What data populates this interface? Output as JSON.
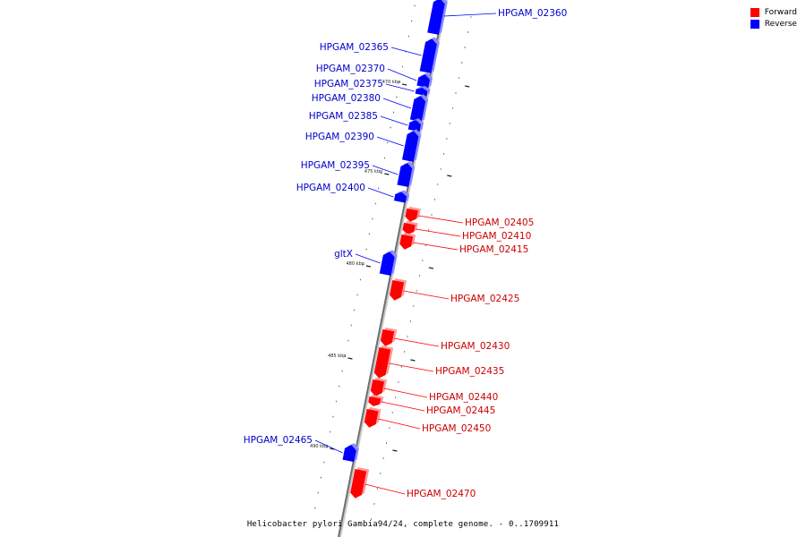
{
  "caption": "Helicobacter pylori Gambia94/24, complete genome. - 0..1709911",
  "legend": [
    {
      "label": "Forward",
      "color": "#ff0000"
    },
    {
      "label": "Reverse",
      "color": "#0000ff"
    }
  ],
  "colors": {
    "forward": "#ff0000",
    "reverse": "#0000ff",
    "backbone": "#888888"
  },
  "scale_ticks": [
    "470 kbp",
    "475 kbp",
    "480 kbp",
    "485 kbp",
    "490 kbp"
  ],
  "genes": [
    {
      "name": "HPGAM_02360",
      "strand": "reverse"
    },
    {
      "name": "HPGAM_02365",
      "strand": "reverse"
    },
    {
      "name": "HPGAM_02370",
      "strand": "reverse"
    },
    {
      "name": "HPGAM_02375",
      "strand": "reverse"
    },
    {
      "name": "HPGAM_02380",
      "strand": "reverse"
    },
    {
      "name": "HPGAM_02385",
      "strand": "reverse"
    },
    {
      "name": "HPGAM_02390",
      "strand": "reverse"
    },
    {
      "name": "HPGAM_02395",
      "strand": "reverse"
    },
    {
      "name": "HPGAM_02400",
      "strand": "reverse"
    },
    {
      "name": "HPGAM_02405",
      "strand": "forward"
    },
    {
      "name": "HPGAM_02410",
      "strand": "forward"
    },
    {
      "name": "HPGAM_02415",
      "strand": "forward"
    },
    {
      "name": "gltX",
      "strand": "reverse"
    },
    {
      "name": "HPGAM_02425",
      "strand": "forward"
    },
    {
      "name": "HPGAM_02430",
      "strand": "forward"
    },
    {
      "name": "HPGAM_02435",
      "strand": "forward"
    },
    {
      "name": "HPGAM_02440",
      "strand": "forward"
    },
    {
      "name": "HPGAM_02445",
      "strand": "forward"
    },
    {
      "name": "HPGAM_02450",
      "strand": "forward"
    },
    {
      "name": "HPGAM_02465",
      "strand": "reverse"
    },
    {
      "name": "HPGAM_02470",
      "strand": "forward"
    }
  ]
}
